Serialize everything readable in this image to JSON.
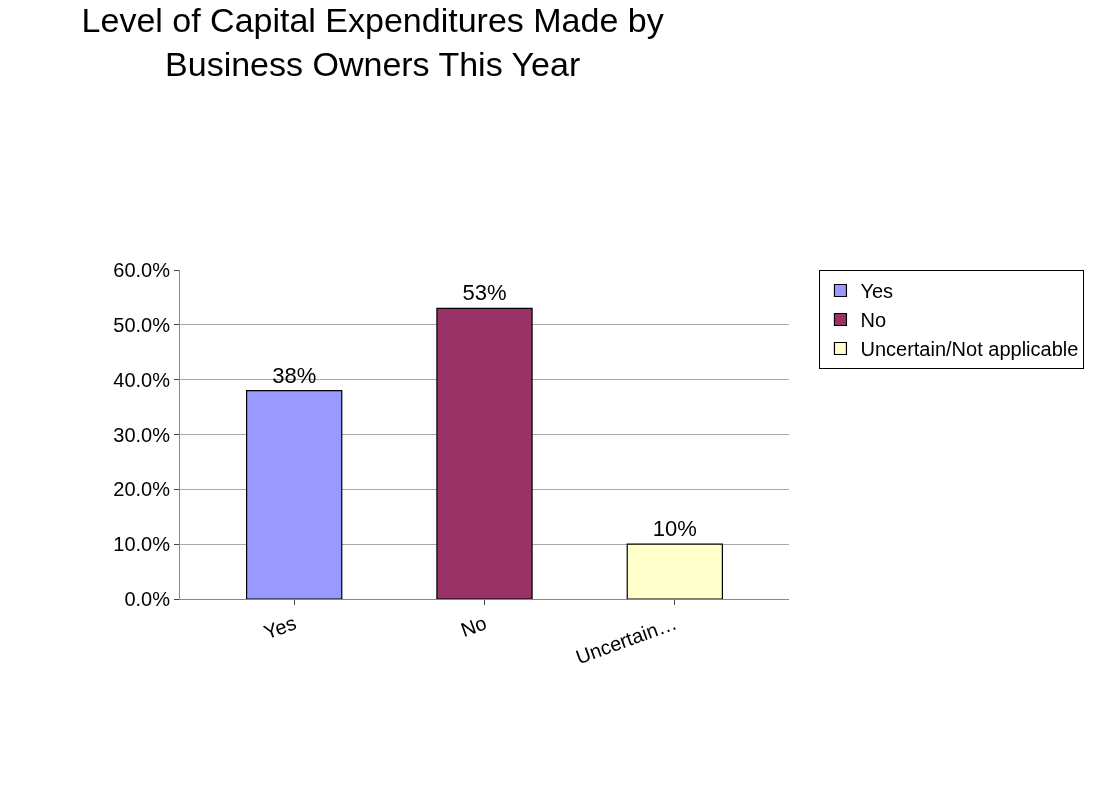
{
  "chart_data": {
    "type": "bar",
    "title": "Level of Capital Expenditures Made by Business Owners This Year",
    "categories": [
      "Yes",
      "No",
      "Uncertain…"
    ],
    "series": [
      {
        "name": "Yes",
        "color": "#9999ff",
        "values": [
          38,
          null,
          null
        ],
        "value_labels": [
          "38%",
          null,
          null
        ]
      },
      {
        "name": "No",
        "color": "#993366",
        "values": [
          null,
          53,
          null
        ],
        "value_labels": [
          null,
          "53%",
          null
        ]
      },
      {
        "name": "Uncertain/Not applicable",
        "color": "#ffffcc",
        "values": [
          null,
          null,
          10
        ],
        "value_labels": [
          null,
          null,
          "10%"
        ]
      }
    ],
    "ylim": [
      0,
      60
    ],
    "yticks": [
      {
        "value": 0,
        "label": "0.0%"
      },
      {
        "value": 10,
        "label": "10.0%"
      },
      {
        "value": 20,
        "label": "20.0%"
      },
      {
        "value": 30,
        "label": "30.0%"
      },
      {
        "value": 40,
        "label": "40.0%"
      },
      {
        "value": 50,
        "label": "50.0%"
      },
      {
        "value": 60,
        "label": "60.0%"
      }
    ],
    "grid": "y",
    "legend": "top right"
  }
}
